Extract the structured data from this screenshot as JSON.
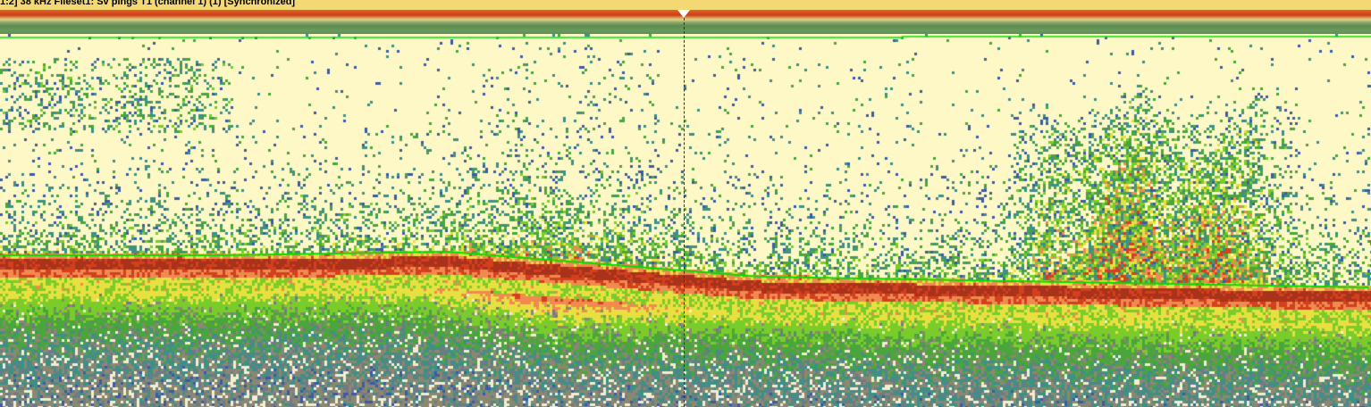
{
  "window": {
    "title": "1:2] 38 kHz Fileset1: Sv pings T1 (channel 1) (1) [Synchronized]"
  },
  "echogram": {
    "palette": {
      "background": "#fdf8c6",
      "weak_blue": "#3c5aa6",
      "teal": "#3f8f86",
      "green": "#4aa53c",
      "bright_green": "#7acc2a",
      "yellow": "#e8e040",
      "orange": "#f08a50",
      "red": "#d2401e",
      "dark_red": "#a8321a",
      "bottom_gray": "#8c8770",
      "line_green": "#00e000"
    }
  }
}
